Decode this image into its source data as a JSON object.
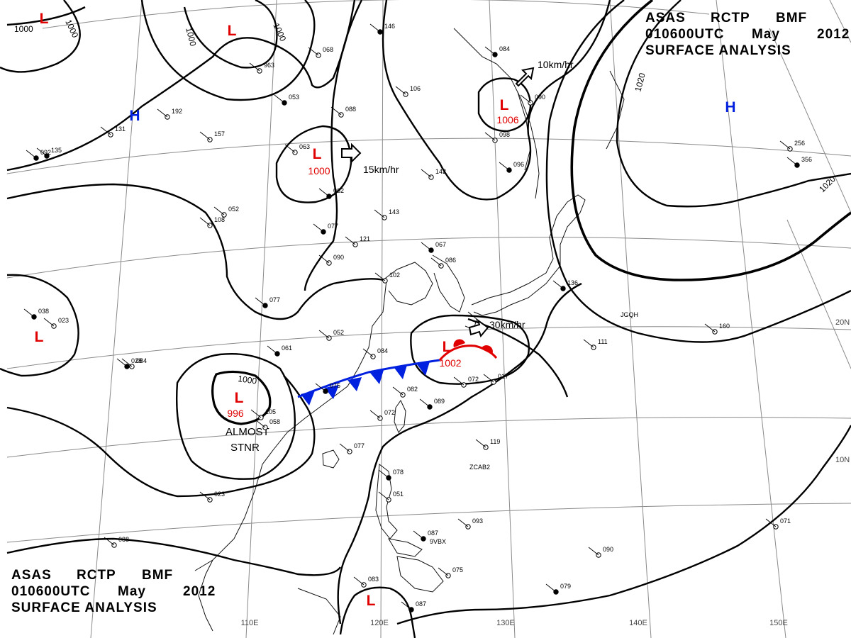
{
  "header": {
    "agency": [
      "ASAS",
      "RCTP",
      "BMF"
    ],
    "datetime": [
      "010600UTC",
      "May",
      "2012"
    ],
    "product": "SURFACE ANALYSIS"
  },
  "longitude_labels": [
    "110E",
    "120E",
    "130E",
    "140E",
    "150E"
  ],
  "latitude_labels": [
    "20N",
    "10N"
  ],
  "pressure_centers": [
    {
      "type": "L",
      "value": "",
      "color": "#e00000"
    },
    {
      "type": "L",
      "value": "",
      "color": "#e00000"
    },
    {
      "type": "L",
      "value": "1000",
      "color": "#e00000"
    },
    {
      "type": "L",
      "value": "1006",
      "color": "#e00000"
    },
    {
      "type": "H",
      "value": "",
      "color": "#0020e0"
    },
    {
      "type": "H",
      "value": "",
      "color": "#0020e0"
    },
    {
      "type": "L",
      "value": "",
      "color": "#e00000"
    },
    {
      "type": "L",
      "value": "996",
      "color": "#e00000"
    },
    {
      "type": "L",
      "value": "1002",
      "color": "#e00000"
    },
    {
      "type": "L",
      "value": "",
      "color": "#e00000"
    }
  ],
  "isobar_labels": [
    "1000",
    "1000",
    "1000",
    "1000",
    "1020",
    "1020",
    "1000"
  ],
  "motion_labels": [
    "10km/hr",
    "15km/hr",
    "30km/hr"
  ],
  "notes": [
    "ALMOST",
    "STNR"
  ],
  "station_codes": [
    "JGQH",
    "ZCAB2",
    "9VBX"
  ],
  "station_values": [
    "146",
    "068",
    "963",
    "053",
    "088",
    "106",
    "084",
    "090",
    "098",
    "096",
    "192",
    "131",
    "135",
    "157",
    "063",
    "062",
    "142",
    "256",
    "356",
    "052",
    "108",
    "077",
    "121",
    "090",
    "067",
    "086",
    "102",
    "077",
    "052",
    "084",
    "061",
    "082",
    "072",
    "089",
    "072",
    "017",
    "075",
    "058",
    "023",
    "028",
    "077",
    "119",
    "078",
    "051",
    "093",
    "087",
    "075",
    "083",
    "087",
    "071",
    "090",
    "079",
    "088",
    "143",
    "136",
    "160",
    "111",
    "038",
    "023",
    "084",
    "092",
    "105"
  ],
  "colors": {
    "isobar": "#000000",
    "low": "#e00000",
    "high": "#0020e0",
    "cold_front": "#0020e0",
    "warm_front": "#e00000",
    "grid": "#888888"
  }
}
